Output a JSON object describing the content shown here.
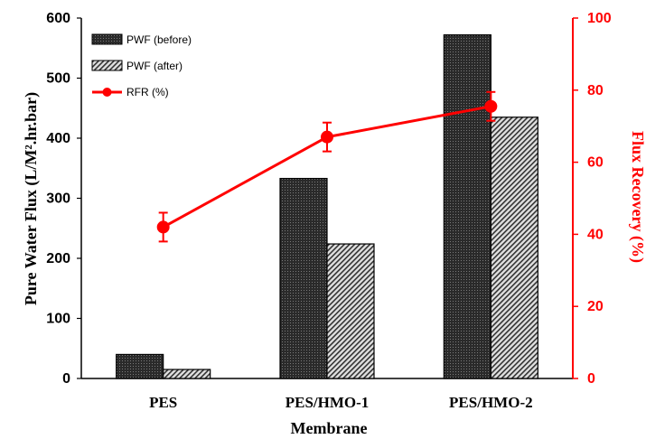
{
  "chart_data": {
    "type": "bar",
    "title": "",
    "categories": [
      "PES",
      "PES/HMO-1",
      "PES/HMO-2"
    ],
    "xlabel": "Membrane",
    "ylabel": "Pure Water Flux (L/M².hr.bar)",
    "y2label": "Flux Recovery (%)",
    "ylim": [
      0,
      600
    ],
    "y2lim": [
      0,
      100
    ],
    "yticks": [
      0,
      100,
      200,
      300,
      400,
      500,
      600
    ],
    "y2ticks": [
      0,
      20,
      40,
      60,
      80,
      100
    ],
    "grid": false,
    "legend_position": "top-left",
    "series": [
      {
        "name": "PWF (before)",
        "axis": "left",
        "kind": "bar",
        "values": [
          40,
          333,
          572
        ],
        "pattern": "dense-dots"
      },
      {
        "name": "PWF (after)",
        "axis": "left",
        "kind": "bar",
        "values": [
          15,
          224,
          435
        ],
        "pattern": "diagonal-hatch"
      },
      {
        "name": "RFR (%)",
        "axis": "right",
        "kind": "line",
        "values": [
          42,
          67,
          75.5
        ],
        "errors": [
          4,
          4,
          4
        ],
        "color": "#ff0000"
      }
    ],
    "colors": {
      "right_axis": "#ff0000",
      "bars": "#1a1a1a"
    }
  }
}
